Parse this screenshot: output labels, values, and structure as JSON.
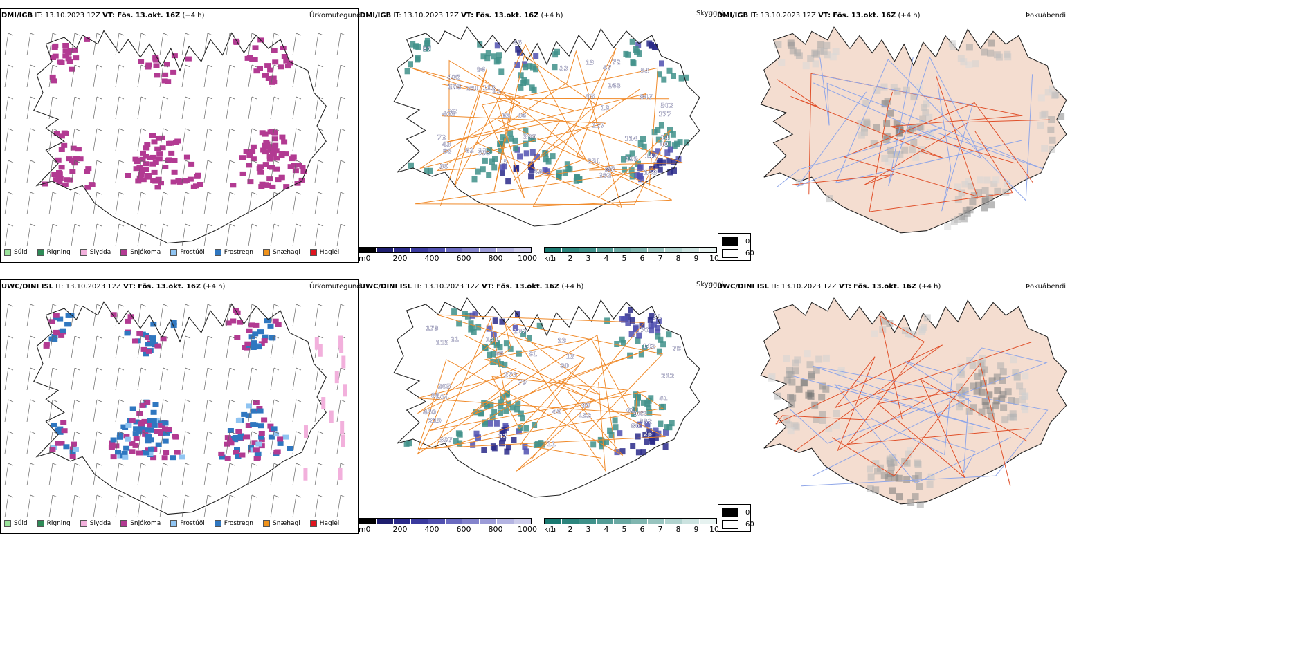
{
  "rows": [
    {
      "model": "DMI/IGB",
      "init": "IT: 13.10.2023 12Z",
      "valid_label": "VT:",
      "valid": "Fös. 13.okt. 16Z",
      "lead": "(+4 h)",
      "titles": [
        "Úrkomutegund",
        "Skyggni",
        "Þokuábendi"
      ]
    },
    {
      "model": "UWC/DINI ISL",
      "init": "IT: 13.10.2023 12Z",
      "valid_label": "VT:",
      "valid": "Fös. 13.okt. 16Z",
      "lead": "(+4 h)",
      "titles": [
        "Úrkomutegund",
        "Skyggni",
        "Þokuábendi"
      ]
    }
  ],
  "precip_legend": [
    {
      "label": "Súld",
      "color": "#9be39b"
    },
    {
      "label": "Rigning",
      "color": "#2e8b57"
    },
    {
      "label": "Slydda",
      "color": "#f2b0dc"
    },
    {
      "label": "Snjókoma",
      "color": "#b23a92"
    },
    {
      "label": "Frostúði",
      "color": "#8fc4f2"
    },
    {
      "label": "Frostregn",
      "color": "#2f77c0"
    },
    {
      "label": "Snæhagl",
      "color": "#f0921a"
    },
    {
      "label": "Haglél",
      "color": "#e0141e"
    }
  ],
  "vis_legend": {
    "m_unit": "m",
    "m_ticks": [
      "0",
      "200",
      "400",
      "600",
      "800",
      "1000"
    ],
    "m_colors": [
      "#000000",
      "#1e1e6e",
      "#2a2a8a",
      "#3a3a9e",
      "#5050b0",
      "#6a6ac0",
      "#8484cc",
      "#9c9cd8",
      "#b4b4e2",
      "#cccceb"
    ],
    "km_unit": "km",
    "km_ticks": [
      "1",
      "2",
      "3",
      "4",
      "5",
      "6",
      "7",
      "8",
      "9",
      "10"
    ],
    "km_colors": [
      "#1b7a72",
      "#2c857d",
      "#3f918a",
      "#549d97",
      "#6aa9a3",
      "#80b6b0",
      "#98c4bf",
      "#b1d3cf",
      "#cce3e0",
      "#e6f2f0"
    ]
  },
  "fog_legend": [
    {
      "label": "0",
      "color": "#000000"
    },
    {
      "label": "60",
      "color": "#ffffff"
    }
  ],
  "vis_labels_top": [
    "35",
    "52",
    "14",
    "72",
    "49",
    "46",
    "13",
    "65",
    "40",
    "127",
    "43",
    "405",
    "390",
    "292",
    "679",
    "847",
    "87",
    "11",
    "251",
    "84",
    "62",
    "281",
    "148",
    "142",
    "33",
    "103",
    "86",
    "403",
    "96",
    "502",
    "114",
    "88",
    "47",
    "15",
    "30",
    "72",
    "63",
    "168",
    "72",
    "299",
    "593",
    "177",
    "105",
    "95",
    "13"
  ],
  "vis_labels_bottom": [
    "270",
    "80",
    "962",
    "38",
    "61",
    "26",
    "46",
    "32",
    "183",
    "113",
    "31",
    "460",
    "219",
    "332",
    "212",
    "21",
    "397",
    "205",
    "104",
    "79",
    "81",
    "142",
    "23",
    "173",
    "102",
    "80",
    "141",
    "93",
    "70",
    "81",
    "88",
    "13",
    "78",
    "11"
  ]
}
